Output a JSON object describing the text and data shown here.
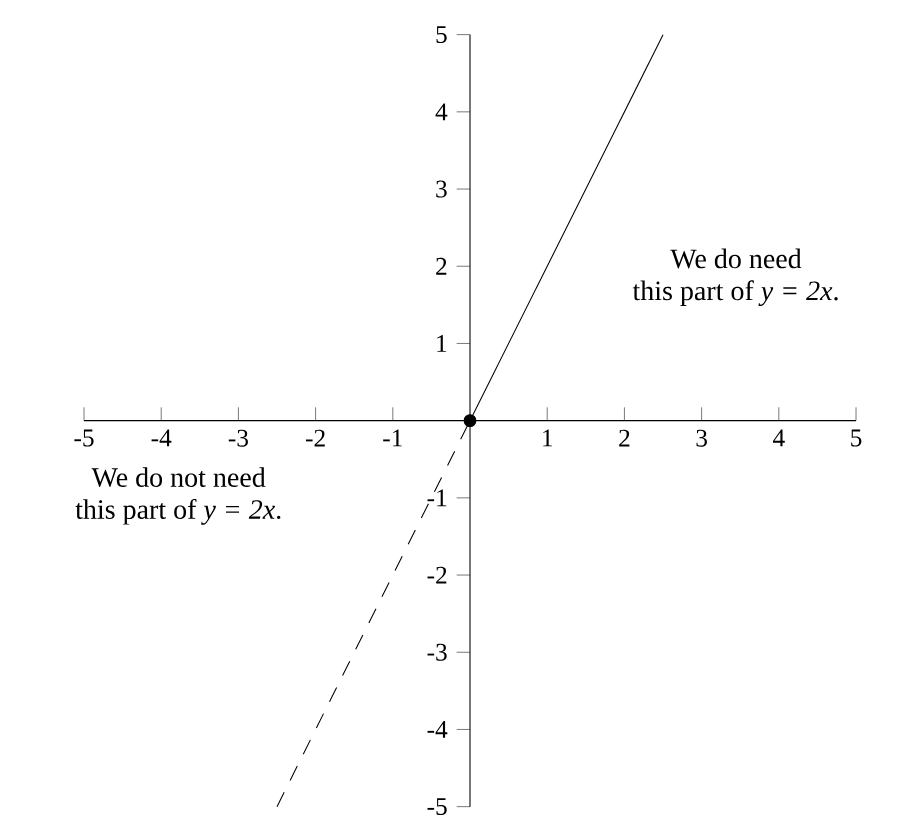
{
  "chart_data": {
    "type": "line",
    "series": [
      {
        "x": [
          0,
          2.5
        ],
        "values": [
          0,
          5
        ],
        "color": "#000000",
        "line_style": "solid",
        "marker": "none"
      },
      {
        "x": [
          -2.5,
          0
        ],
        "values": [
          -5,
          0
        ],
        "color": "#000000",
        "line_style": "dashed",
        "marker": "none"
      },
      {
        "type": "scatter",
        "x": [
          0
        ],
        "values": [
          0
        ],
        "color": "#000000",
        "marker": "circle"
      }
    ],
    "xlim": [
      -5,
      5
    ],
    "ylim": [
      -5,
      5
    ],
    "xticks": [
      -5,
      -4,
      -3,
      -2,
      -1,
      1,
      2,
      3,
      4,
      5
    ],
    "yticks": [
      -5,
      -4,
      -3,
      -2,
      -1,
      1,
      2,
      3,
      4,
      5
    ],
    "annotations": [
      "We do need\nthis part of *y = 2x*.",
      "We do not need\nthis part of *y = 2x*."
    ]
  }
}
